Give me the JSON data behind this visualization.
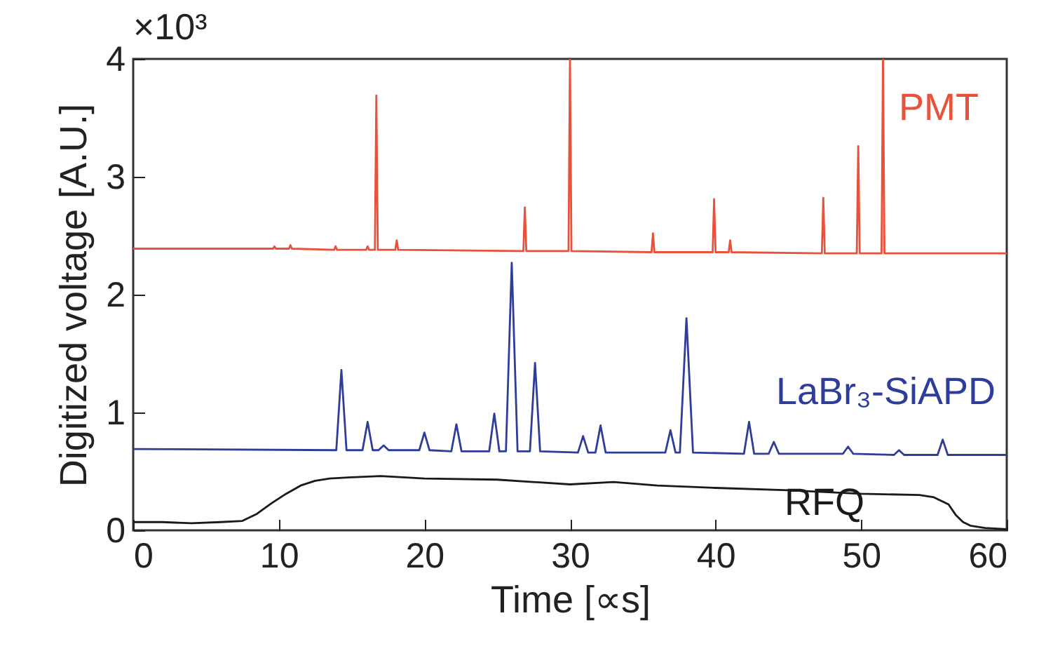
{
  "chart_data": {
    "type": "line",
    "xlabel": "Time [∝s]",
    "ylabel": "Digitized voltage [A.U.]",
    "annotations": [
      "×10³"
    ],
    "xlim": [
      0,
      60
    ],
    "ylim": [
      0,
      4
    ],
    "xticks": [
      0,
      10,
      20,
      30,
      40,
      50,
      60
    ],
    "yticks": [
      0,
      1,
      2,
      3,
      4
    ],
    "series": [
      {
        "name": "PMT",
        "color": "#e8513a",
        "x": [
          0,
          9.6,
          9.7,
          9.8,
          10.7,
          10.8,
          10.9,
          13.8,
          13.9,
          14.0,
          16.0,
          16.1,
          16.2,
          16.6,
          16.7,
          16.8,
          18.0,
          18.1,
          18.2,
          26.8,
          26.9,
          27.0,
          29.9,
          30.0,
          30.1,
          35.6,
          35.7,
          35.8,
          39.8,
          39.9,
          40.0,
          40.9,
          41.0,
          41.1,
          47.3,
          47.4,
          47.5,
          49.7,
          49.8,
          49.9,
          51.4,
          51.5,
          51.6,
          60
        ],
        "values": [
          2.39,
          2.39,
          2.41,
          2.39,
          2.39,
          2.42,
          2.39,
          2.38,
          2.41,
          2.38,
          2.38,
          2.41,
          2.38,
          2.38,
          3.69,
          2.38,
          2.38,
          2.46,
          2.38,
          2.37,
          2.74,
          2.37,
          2.37,
          4.0,
          2.37,
          2.36,
          2.52,
          2.36,
          2.36,
          2.81,
          2.36,
          2.36,
          2.46,
          2.36,
          2.35,
          2.82,
          2.35,
          2.35,
          3.26,
          2.35,
          2.35,
          4.0,
          2.35,
          2.35
        ]
      },
      {
        "name": "LaBr₃-SiAPD",
        "color": "#2e3d9a",
        "x": [
          0,
          13.95,
          14.3,
          14.65,
          15.75,
          16.1,
          16.45,
          16.85,
          17.2,
          17.55,
          19.65,
          20.0,
          20.35,
          21.85,
          22.2,
          22.55,
          24.45,
          24.8,
          25.15,
          25.6,
          26.0,
          26.4,
          27.25,
          27.6,
          27.95,
          30.55,
          30.9,
          31.25,
          31.75,
          32.1,
          32.45,
          36.55,
          36.9,
          37.25,
          37.55,
          38.0,
          38.45,
          41.95,
          42.3,
          42.65,
          43.65,
          44.0,
          44.35,
          48.75,
          49.1,
          49.45,
          52.25,
          52.6,
          52.95,
          55.25,
          55.6,
          55.95,
          60
        ],
        "values": [
          0.69,
          0.68,
          1.36,
          0.68,
          0.68,
          0.92,
          0.68,
          0.68,
          0.72,
          0.68,
          0.68,
          0.83,
          0.68,
          0.67,
          0.9,
          0.67,
          0.67,
          0.99,
          0.67,
          0.67,
          2.27,
          0.67,
          0.67,
          1.42,
          0.67,
          0.66,
          0.8,
          0.66,
          0.66,
          0.89,
          0.66,
          0.66,
          0.85,
          0.66,
          0.66,
          1.8,
          0.66,
          0.65,
          0.92,
          0.65,
          0.65,
          0.75,
          0.65,
          0.65,
          0.71,
          0.65,
          0.64,
          0.68,
          0.64,
          0.64,
          0.77,
          0.64,
          0.64
        ]
      },
      {
        "name": "RFQ",
        "color": "#1a1a1a",
        "x": [
          0,
          2,
          4,
          6,
          7.5,
          8.5,
          9.5,
          10.5,
          11.5,
          12.5,
          13.5,
          15,
          17,
          20,
          25,
          30,
          33,
          36,
          40,
          45,
          50,
          54,
          55,
          56,
          56.5,
          57,
          57.5,
          58.5,
          60
        ],
        "values": [
          0.07,
          0.07,
          0.06,
          0.07,
          0.08,
          0.14,
          0.23,
          0.31,
          0.38,
          0.42,
          0.44,
          0.45,
          0.46,
          0.44,
          0.43,
          0.39,
          0.41,
          0.38,
          0.36,
          0.34,
          0.31,
          0.3,
          0.28,
          0.22,
          0.13,
          0.07,
          0.04,
          0.02,
          0.01
        ]
      }
    ]
  }
}
